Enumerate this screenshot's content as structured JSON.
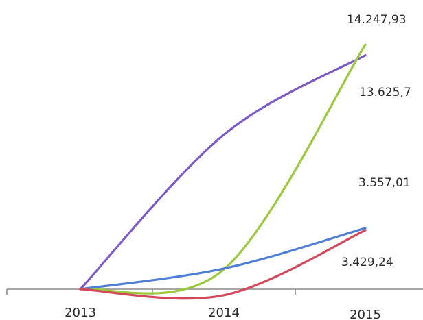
{
  "chart_data": {
    "type": "line",
    "title": "",
    "xlabel": "",
    "ylabel": "",
    "categories": [
      "2013",
      "2014",
      "2015"
    ],
    "ylim": [
      -800,
      16000
    ],
    "grid": false,
    "legend": "none",
    "series": [
      {
        "color": "#7b59c9",
        "values": [
          0,
          9000,
          13625.7
        ]
      },
      {
        "color": "#9bc93c",
        "values": [
          0,
          1150,
          14247.93
        ]
      },
      {
        "color": "#4f7fd4",
        "values": [
          0,
          1200,
          3557.01
        ]
      },
      {
        "color": "#d4475a",
        "values": [
          0,
          -350,
          3429.24
        ]
      }
    ],
    "data_labels": [
      "14.247,93",
      "13.625,7",
      "3.557,01",
      "3.429,24"
    ]
  }
}
